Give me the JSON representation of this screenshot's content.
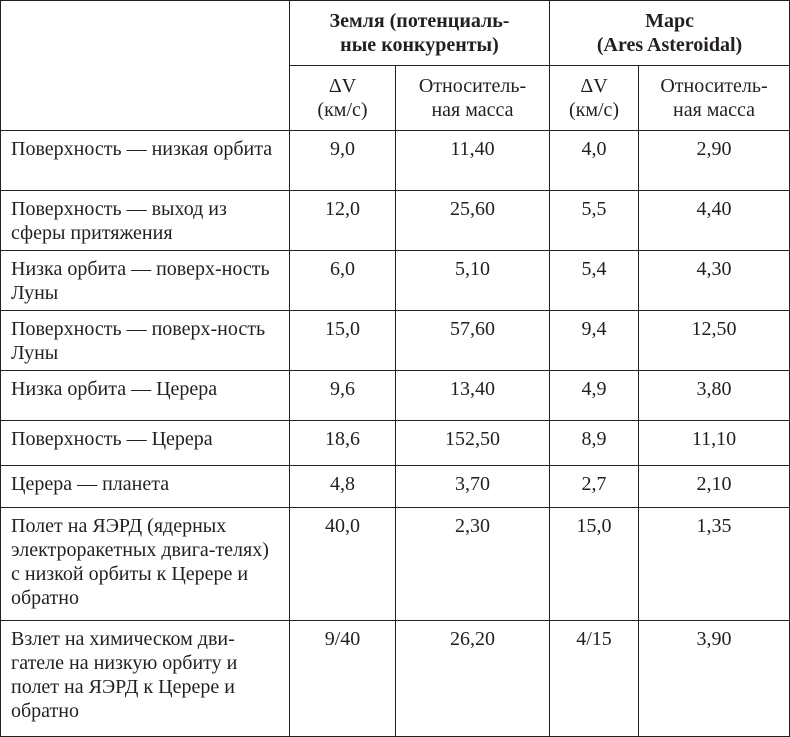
{
  "header": {
    "earth": "Земля (потенциаль-\nные конкуренты)",
    "mars": "Марс\n(Ares Asteroidal)",
    "dv": "ΔV\n(км/с)",
    "mass": "Относитель-\nная масса"
  },
  "rows": [
    {
      "label": "Поверхность — низкая орбита",
      "e_dv": "9,0",
      "e_m": "11,40",
      "m_dv": "4,0",
      "m_m": "2,90"
    },
    {
      "label": "Поверхность — выход из сферы притяжения",
      "e_dv": "12,0",
      "e_m": "25,60",
      "m_dv": "5,5",
      "m_m": "4,40"
    },
    {
      "label": "Низка орбита — поверх-ность Луны",
      "e_dv": "6,0",
      "e_m": "5,10",
      "m_dv": "5,4",
      "m_m": "4,30"
    },
    {
      "label": "Поверхность — поверх-ность Луны",
      "e_dv": "15,0",
      "e_m": "57,60",
      "m_dv": "9,4",
      "m_m": "12,50"
    },
    {
      "label": "Низка орбита — Церера",
      "e_dv": "9,6",
      "e_m": "13,40",
      "m_dv": "4,9",
      "m_m": "3,80"
    },
    {
      "label": "Поверхность — Церера",
      "e_dv": "18,6",
      "e_m": "152,50",
      "m_dv": "8,9",
      "m_m": "11,10"
    },
    {
      "label": "Церера — планета",
      "e_dv": "4,8",
      "e_m": "3,70",
      "m_dv": "2,7",
      "m_m": "2,10"
    },
    {
      "label": "Полет на ЯЭРД (ядерных электроракетных двига-телях) с низкой орбиты к Церере и обратно",
      "e_dv": "40,0",
      "e_m": "2,30",
      "m_dv": "15,0",
      "m_m": "1,35"
    },
    {
      "label": "Взлет на химическом дви-гателе на низкую орбиту и полет на ЯЭРД к Церере и обратно",
      "e_dv": "9/40",
      "e_m": "26,20",
      "m_dv": "4/15",
      "m_m": "3,90"
    }
  ]
}
